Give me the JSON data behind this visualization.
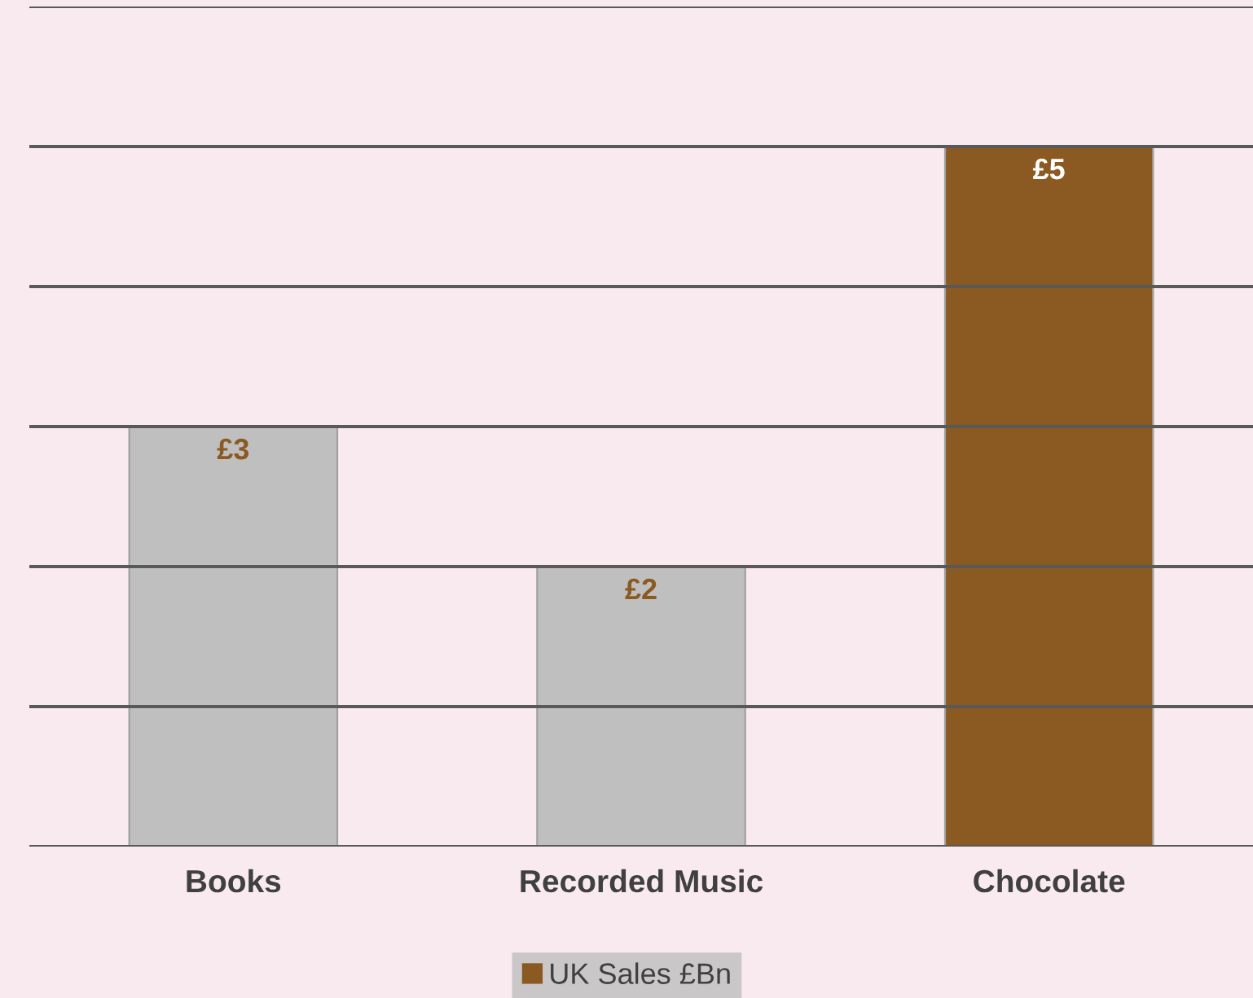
{
  "chart_data": {
    "type": "bar",
    "categories": [
      "Books",
      "Recorded Music",
      "Chocolate"
    ],
    "series": [
      {
        "name": "UK Sales £Bn",
        "color": "#8b5a23",
        "colors": [
          "#bfbfbf",
          "#bfbfbf",
          "#8b5a23"
        ],
        "values": [
          3,
          2,
          5
        ],
        "value_labels": [
          "£3",
          "£2",
          "£5"
        ]
      }
    ],
    "ylim": [
      0,
      6
    ],
    "yticks": [
      {
        "value": 0,
        "label": null
      },
      {
        "value": 1,
        "label": null
      },
      {
        "value": 2,
        "label": null
      },
      {
        "value": 3,
        "label": null
      },
      {
        "value": 4,
        "label": null
      },
      {
        "value": 5,
        "label": null
      },
      {
        "value": 6,
        "label": null
      }
    ],
    "grid": "y",
    "legend": "bottom",
    "tick_labels": "x"
  }
}
